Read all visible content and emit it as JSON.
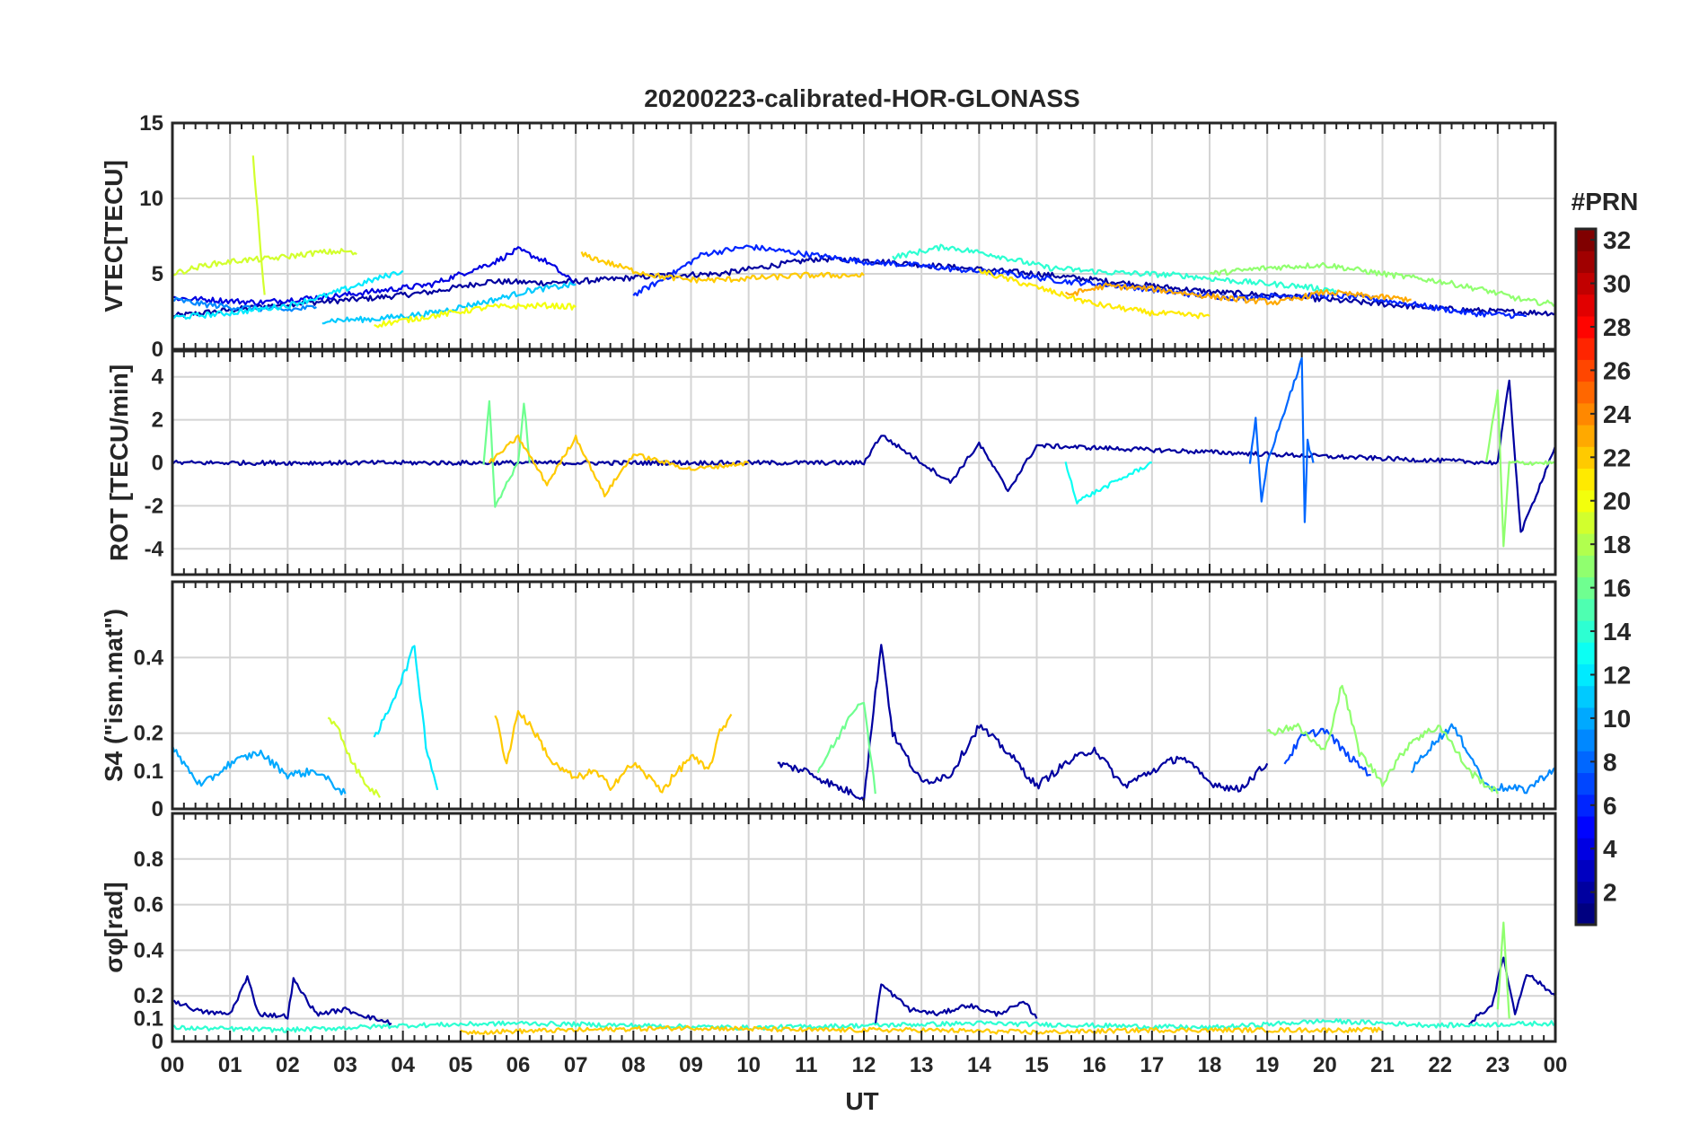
{
  "chart_data": {
    "type": "line",
    "title": "20200223-calibrated-HOR-GLONASS",
    "xlabel": "UT",
    "x_ticks": [
      "00",
      "01",
      "02",
      "03",
      "04",
      "05",
      "06",
      "07",
      "08",
      "09",
      "10",
      "11",
      "12",
      "13",
      "14",
      "15",
      "16",
      "17",
      "18",
      "19",
      "20",
      "21",
      "22",
      "23",
      "00"
    ],
    "xlim": [
      0,
      24
    ],
    "colorbar": {
      "label": "#PRN",
      "range": [
        1,
        32
      ],
      "ticks": [
        "2",
        "4",
        "6",
        "8",
        "10",
        "12",
        "14",
        "16",
        "18",
        "20",
        "22",
        "24",
        "26",
        "28",
        "30",
        "32"
      ],
      "colormap": "jet"
    },
    "panels": [
      {
        "id": "vtec",
        "ylabel": "VTEC[TECU]",
        "ylim": [
          0,
          15
        ],
        "yticks": [
          "0",
          "5",
          "10",
          "15"
        ],
        "series": [
          {
            "name": "PRN 2",
            "prn": 2,
            "x": [
              0,
              1,
              2,
              2.8,
              3.5,
              4.5,
              5.5,
              6.5,
              7.5,
              8.5,
              9.5,
              10.5,
              11.2,
              12,
              13,
              14,
              15,
              16,
              17,
              18,
              19,
              20,
              21,
              22,
              23,
              24
            ],
            "y": [
              2.2,
              2.6,
              3.0,
              3.2,
              3.4,
              3.8,
              4.5,
              4.4,
              4.6,
              4.9,
              5.0,
              5.6,
              6.0,
              5.9,
              5.6,
              5.3,
              5.0,
              4.6,
              4.2,
              3.8,
              3.6,
              3.3,
              3.0,
              2.7,
              2.5,
              2.4
            ]
          },
          {
            "name": "PRN 4",
            "prn": 4,
            "x": [
              0,
              1.5,
              3,
              4.5,
              5.6,
              6,
              6.5,
              7
            ],
            "y": [
              3.4,
              3.1,
              3.6,
              4.3,
              5.8,
              6.6,
              5.8,
              4.3
            ]
          },
          {
            "name": "PRN 6",
            "prn": 6,
            "x": [
              8,
              8.6,
              9.2,
              10,
              11,
              12,
              12.8,
              13.6,
              14.5,
              15.5,
              16.5,
              17.5,
              18.5,
              19.5,
              20.5,
              21.5,
              22.5,
              23.5
            ],
            "y": [
              3.6,
              4.8,
              6.3,
              6.8,
              6.3,
              5.8,
              5.6,
              5.3,
              5.0,
              4.5,
              4.2,
              3.7,
              3.4,
              3.6,
              3.5,
              3.0,
              2.4,
              2.2
            ]
          },
          {
            "name": "PRN 9",
            "prn": 9,
            "x": [
              0,
              0.5,
              1,
              1.5,
              2,
              2.5
            ],
            "y": [
              3.3,
              3.0,
              2.8,
              2.7,
              2.6,
              2.8
            ]
          },
          {
            "name": "PRN 11",
            "prn": 11,
            "x": [
              2.6,
              3.5,
              4.5,
              5.5,
              6.2,
              7
            ],
            "y": [
              1.9,
              2.0,
              2.4,
              3.2,
              3.9,
              4.3
            ]
          },
          {
            "name": "PRN 12",
            "prn": 12,
            "x": [
              0,
              1,
              2,
              2.7,
              3.4,
              4
            ],
            "y": [
              2.1,
              2.4,
              2.9,
              3.6,
              4.5,
              5.2
            ]
          },
          {
            "name": "PRN 14",
            "prn": 14,
            "x": [
              12.5,
              13.4,
              14.2,
              15.2,
              16.2,
              17.5,
              18.5,
              19.5,
              20.2
            ],
            "y": [
              6.1,
              6.8,
              6.3,
              5.4,
              5.1,
              4.9,
              4.5,
              4.2,
              3.9
            ]
          },
          {
            "name": "PRN 17",
            "prn": 17,
            "x": [
              18,
              19,
              20,
              21,
              22,
              22.8,
              23.5,
              24
            ],
            "y": [
              5.0,
              5.4,
              5.6,
              5.0,
              4.5,
              3.9,
              3.2,
              3.0
            ]
          },
          {
            "name": "PRN 19",
            "prn": 19,
            "x": [
              0,
              0.6,
              1.2,
              1.7,
              2.1,
              2.5,
              3,
              3.2
            ],
            "y": [
              5.0,
              5.6,
              5.9,
              6.0,
              6.2,
              6.4,
              6.5,
              6.3
            ]
          },
          {
            "name": "PRN 19b",
            "prn": 19,
            "x": [
              1.4,
              1.45,
              1.5,
              1.55,
              1.6
            ],
            "y": [
              12.7,
              10.4,
              8.1,
              5.6,
              3.6
            ]
          },
          {
            "name": "PRN 20",
            "prn": 20,
            "x": [
              3.5,
              4.5,
              5.5,
              6.5,
              7
            ],
            "y": [
              1.6,
              2.2,
              2.8,
              2.9,
              2.8
            ]
          },
          {
            "name": "PRN 21",
            "prn": 21,
            "x": [
              14,
              15,
              16,
              17,
              18
            ],
            "y": [
              5.2,
              4.1,
              3.0,
              2.4,
              2.2
            ]
          },
          {
            "name": "PRN 22",
            "prn": 22,
            "x": [
              7.1,
              7.5,
              8,
              8.5,
              9,
              9.5,
              10,
              10.5,
              11,
              12
            ],
            "y": [
              6.3,
              5.8,
              5.2,
              4.8,
              4.6,
              4.6,
              4.7,
              4.8,
              4.9,
              4.9
            ]
          },
          {
            "name": "PRN 23",
            "prn": 23,
            "x": [
              15.5,
              16.2,
              17,
              17.8,
              18.5,
              19.2,
              20,
              20.8,
              21.5
            ],
            "y": [
              3.6,
              4.2,
              4.0,
              3.6,
              3.3,
              3.1,
              3.8,
              3.5,
              3.3
            ]
          }
        ]
      },
      {
        "id": "rot",
        "ylabel": "ROT [TECU/min]",
        "ylim": [
          -5.2,
          5.2
        ],
        "yticks": [
          "-4",
          "-2",
          "0",
          "2",
          "4"
        ],
        "series": [
          {
            "name": "PRN 2",
            "prn": 2,
            "x": [
              0,
              12,
              12.3,
              13.5,
              14,
              14.5,
              15,
              23,
              23.2,
              23.4,
              24
            ],
            "y": [
              0,
              0,
              1.3,
              -0.9,
              0.9,
              -1.3,
              0.8,
              0,
              3.9,
              -3.3,
              0.8
            ]
          },
          {
            "name": "PRN 8",
            "prn": 8,
            "x": [
              18.7,
              18.8,
              18.9,
              19,
              19.6,
              19.65,
              19.7,
              19.8
            ],
            "y": [
              0,
              2.0,
              -1.9,
              0,
              4.8,
              -2.8,
              1.0,
              0
            ]
          },
          {
            "name": "PRN 13",
            "prn": 13,
            "x": [
              15.5,
              15.7,
              17
            ],
            "y": [
              0,
              -1.8,
              0
            ]
          },
          {
            "name": "PRN 16",
            "prn": 16,
            "x": [
              5.4,
              5.5,
              5.6,
              6,
              6.1,
              6.2
            ],
            "y": [
              0,
              2.8,
              -2.0,
              0,
              2.8,
              0
            ]
          },
          {
            "name": "PRN 17",
            "prn": 17,
            "x": [
              22.8,
              23,
              23.1,
              23.2,
              24
            ],
            "y": [
              0,
              3.4,
              -3.9,
              0,
              0
            ]
          },
          {
            "name": "PRN 22",
            "prn": 22,
            "x": [
              5.5,
              6,
              6.5,
              7,
              7.5,
              8,
              9,
              10
            ],
            "y": [
              0,
              1.2,
              -1.0,
              1.2,
              -1.5,
              0.4,
              -0.3,
              0
            ]
          }
        ]
      },
      {
        "id": "s4",
        "ylabel": "S4 (\"ism.mat\")",
        "ylim": [
          0,
          0.6
        ],
        "yticks": [
          "0",
          "0.1",
          "0.2",
          "0.4"
        ],
        "series": [
          {
            "name": "PRN 2",
            "prn": 2,
            "x": [
              10.5,
              11,
              11.5,
              12,
              12.3,
              12.5,
              13,
              13.5,
              14,
              14.5,
              15,
              15.5,
              16,
              16.5,
              17,
              17.5,
              18,
              18.5,
              19
            ],
            "y": [
              0.12,
              0.1,
              0.06,
              0.03,
              0.44,
              0.2,
              0.07,
              0.09,
              0.22,
              0.15,
              0.06,
              0.12,
              0.16,
              0.06,
              0.1,
              0.14,
              0.07,
              0.05,
              0.12
            ]
          },
          {
            "name": "PRN 7",
            "prn": 7,
            "x": [
              19.3,
              19.6,
              20,
              20.4,
              20.8
            ],
            "y": [
              0.12,
              0.19,
              0.21,
              0.14,
              0.09
            ]
          },
          {
            "name": "PRN 9",
            "prn": 9,
            "x": [
              21.5,
              21.8,
              22.2,
              22.5,
              22.8,
              23.5,
              24
            ],
            "y": [
              0.1,
              0.16,
              0.22,
              0.15,
              0.06,
              0.05,
              0.11
            ]
          },
          {
            "name": "PRN 10",
            "prn": 10,
            "x": [
              0,
              0.5,
              1,
              1.5,
              2,
              2.5,
              3
            ],
            "y": [
              0.16,
              0.06,
              0.12,
              0.15,
              0.09,
              0.1,
              0.04
            ]
          },
          {
            "name": "PRN 12",
            "prn": 12,
            "x": [
              3.5,
              3.8,
              4,
              4.2,
              4.4,
              4.6
            ],
            "y": [
              0.18,
              0.28,
              0.35,
              0.43,
              0.17,
              0.05
            ]
          },
          {
            "name": "PRN 16",
            "prn": 16,
            "x": [
              11.2,
              11.6,
              11.8,
              12,
              12.2
            ],
            "y": [
              0.1,
              0.2,
              0.26,
              0.29,
              0.04
            ]
          },
          {
            "name": "PRN 17",
            "prn": 17,
            "x": [
              19,
              19.5,
              20,
              20.3,
              20.6,
              21,
              21.5,
              22,
              22.5,
              23
            ],
            "y": [
              0.2,
              0.22,
              0.15,
              0.33,
              0.15,
              0.07,
              0.18,
              0.22,
              0.1,
              0.04
            ]
          },
          {
            "name": "PRN 19",
            "prn": 19,
            "x": [
              2.7,
              2.9,
              3.2,
              3.4,
              3.6
            ],
            "y": [
              0.25,
              0.2,
              0.1,
              0.06,
              0.03
            ]
          },
          {
            "name": "PRN 22",
            "prn": 22,
            "x": [
              5.6,
              5.8,
              6,
              6.3,
              6.6,
              7,
              7.3,
              7.6,
              8,
              8.5,
              9,
              9.3,
              9.5,
              9.7
            ],
            "y": [
              0.25,
              0.12,
              0.26,
              0.2,
              0.12,
              0.08,
              0.1,
              0.06,
              0.12,
              0.05,
              0.14,
              0.1,
              0.2,
              0.25
            ]
          }
        ]
      },
      {
        "id": "sigma_phi",
        "ylabel": "σφ[rad]",
        "ylim": [
          0,
          1.0
        ],
        "yticks": [
          "0",
          "0.1",
          "0.2",
          "0.4",
          "0.6",
          "0.8"
        ],
        "series": [
          {
            "name": "PRN 2",
            "prn": 2,
            "x": [
              0,
              0.5,
              1,
              1.3,
              1.5,
              2,
              2.1,
              2.5,
              3,
              3.5,
              3.8
            ],
            "y": [
              0.18,
              0.13,
              0.12,
              0.28,
              0.12,
              0.11,
              0.27,
              0.12,
              0.14,
              0.1,
              0.08
            ]
          },
          {
            "name": "PRN 2b",
            "prn": 2,
            "x": [
              12.2,
              12.3,
              12.8,
              13.3,
              13.8,
              14.3,
              14.8,
              15
            ],
            "y": [
              0.08,
              0.25,
              0.14,
              0.12,
              0.16,
              0.12,
              0.17,
              0.1
            ]
          },
          {
            "name": "PRN 2c",
            "prn": 2,
            "x": [
              22.5,
              22.9,
              23.1,
              23.3,
              23.5,
              24
            ],
            "y": [
              0.08,
              0.16,
              0.37,
              0.12,
              0.3,
              0.2
            ]
          },
          {
            "name": "PRN 17",
            "prn": 17,
            "x": [
              23,
              23.1,
              23.2
            ],
            "y": [
              0.15,
              0.52,
              0.1
            ]
          },
          {
            "name": "PRN 14",
            "prn": 14,
            "x": [
              0,
              2,
              4,
              6,
              8,
              10,
              12,
              14,
              16,
              18,
              20,
              22,
              24
            ],
            "y": [
              0.06,
              0.05,
              0.07,
              0.08,
              0.07,
              0.06,
              0.07,
              0.08,
              0.07,
              0.06,
              0.09,
              0.07,
              0.08
            ]
          },
          {
            "name": "PRN 22",
            "prn": 22,
            "x": [
              5,
              7,
              9,
              11,
              13,
              15,
              17,
              19,
              21
            ],
            "y": [
              0.04,
              0.05,
              0.06,
              0.05,
              0.05,
              0.04,
              0.05,
              0.05,
              0.05
            ]
          }
        ]
      }
    ]
  }
}
